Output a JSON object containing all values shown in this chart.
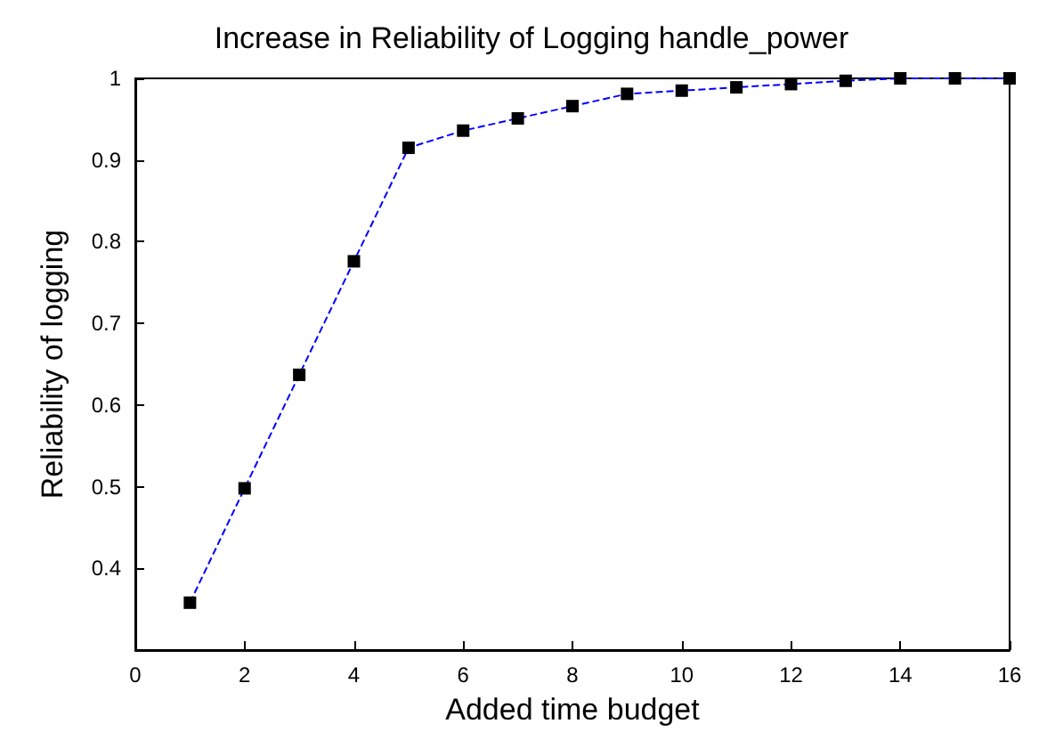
{
  "chart_data": {
    "type": "line",
    "title": "Increase in Reliability of Logging handle_power",
    "xlabel": "Added time budget",
    "ylabel": "Reliability of logging",
    "x": [
      1,
      2,
      3,
      4,
      5,
      6,
      7,
      8,
      9,
      10,
      11,
      12,
      13,
      14,
      15,
      16
    ],
    "series": [
      {
        "color": "#0000ff",
        "values": [
          0.358,
          0.498,
          0.637,
          0.776,
          0.915,
          0.936,
          0.951,
          0.966,
          0.981,
          0.985,
          0.989,
          0.993,
          0.997,
          1,
          1,
          1
        ]
      }
    ],
    "xlim": [
      0,
      16
    ],
    "xticks": [
      0,
      2,
      4,
      6,
      8,
      10,
      12,
      14,
      16
    ],
    "ylim": [
      0.3,
      1
    ],
    "yticks": [
      0.4,
      0.5,
      0.6,
      0.7,
      0.8,
      0.9,
      1
    ],
    "marker": "square",
    "line_style": "dashed",
    "grid": false
  }
}
